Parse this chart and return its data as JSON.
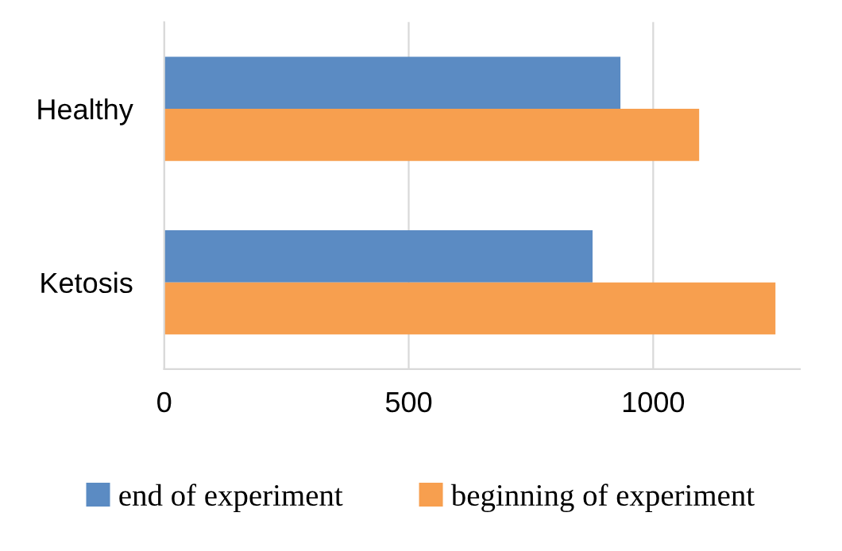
{
  "chart_data": {
    "type": "bar",
    "orientation": "horizontal",
    "categories": [
      "Healthy",
      "Ketosis"
    ],
    "series": [
      {
        "name": "end of experiment",
        "color": "#5b8bc3",
        "values": [
          933,
          876
        ]
      },
      {
        "name": "beginning of experiment",
        "color": "#f79f4f",
        "values": [
          1094,
          1250
        ]
      }
    ],
    "xlim": [
      0,
      1300
    ],
    "xticks": [
      0,
      500,
      1000
    ],
    "grid": "x",
    "legend": "bottom"
  }
}
